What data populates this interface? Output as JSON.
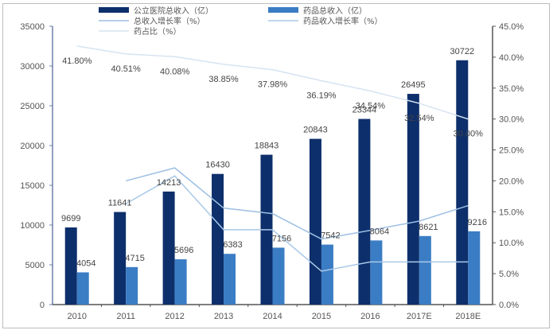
{
  "chart_data": {
    "type": "bar",
    "title": "",
    "xlabel": "",
    "ylabel": "",
    "y2label": "",
    "categories": [
      "2010",
      "2011",
      "2012",
      "2013",
      "2014",
      "2015",
      "2016",
      "2017E",
      "2018E"
    ],
    "ylim": [
      0,
      35000
    ],
    "y_ticks": [
      "0",
      "5000",
      "10000",
      "15000",
      "20000",
      "25000",
      "30000",
      "35000"
    ],
    "y2lim": [
      0,
      45
    ],
    "y2_ticks": [
      "0.0%",
      "5.0%",
      "10.0%",
      "15.0%",
      "20.0%",
      "25.0%",
      "30.0%",
      "35.0%",
      "40.0%",
      "45.0%"
    ],
    "legend_position": "top",
    "grid": false,
    "series": [
      {
        "name": "公立医院总收入（亿）",
        "type": "bar",
        "axis": "left",
        "color": "#0d2f6b",
        "values": [
          9699,
          11641,
          14213,
          16430,
          18843,
          20843,
          23344,
          26495,
          30722
        ],
        "labels": [
          "9699",
          "11641",
          "14213",
          "16430",
          "18843",
          "20843",
          "23344",
          "26495",
          "30722"
        ]
      },
      {
        "name": "药品总收入（亿）",
        "type": "bar",
        "axis": "left",
        "color": "#3b7dc4",
        "values": [
          4054,
          4715,
          5696,
          6383,
          7156,
          7542,
          8064,
          8621,
          9216
        ],
        "labels": [
          "4054",
          "4715",
          "5696",
          "6383",
          "7156",
          "7542",
          "8064",
          "8621",
          "9216"
        ]
      },
      {
        "name": "总收入增长率（%）",
        "type": "line",
        "axis": "right",
        "color": "#9dbfe3",
        "values": [
          null,
          20.0,
          22.1,
          15.6,
          14.7,
          10.6,
          12.0,
          13.5,
          16.0
        ]
      },
      {
        "name": "药品收入增长率（%）",
        "type": "line",
        "axis": "right",
        "color": "#a9c8e8",
        "values": [
          null,
          16.3,
          20.8,
          12.1,
          12.1,
          5.4,
          6.9,
          6.9,
          6.9
        ]
      },
      {
        "name": "药占比（%）",
        "type": "line",
        "axis": "right",
        "color": "#d6e4f2",
        "values": [
          41.8,
          40.51,
          40.08,
          38.85,
          37.98,
          36.19,
          34.54,
          32.54,
          30.0
        ],
        "labels": [
          "41.80%",
          "40.51%",
          "40.08%",
          "38.85%",
          "37.98%",
          "36.19%",
          "34.54%",
          "32.54%",
          "30.00%"
        ]
      }
    ]
  },
  "legend": {
    "items": [
      {
        "label": "公立医院总收入（亿）",
        "kind": "bar",
        "color": "#0d2f6b"
      },
      {
        "label": "药品总收入（亿）",
        "kind": "bar",
        "color": "#3b7dc4"
      },
      {
        "label": "总收入增长率（%）",
        "kind": "line",
        "color": "#9dbfe3"
      },
      {
        "label": "药品收入增长率（%）",
        "kind": "line",
        "color": "#a9c8e8"
      },
      {
        "label": "药占比（%）",
        "kind": "line",
        "color": "#d6e4f2"
      }
    ]
  }
}
